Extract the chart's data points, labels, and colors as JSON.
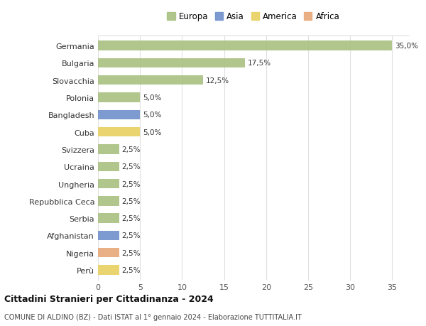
{
  "countries": [
    "Germania",
    "Bulgaria",
    "Slovacchia",
    "Polonia",
    "Bangladesh",
    "Cuba",
    "Svizzera",
    "Ucraina",
    "Ungheria",
    "Repubblica Ceca",
    "Serbia",
    "Afghanistan",
    "Nigeria",
    "Perù"
  ],
  "values": [
    35.0,
    17.5,
    12.5,
    5.0,
    5.0,
    5.0,
    2.5,
    2.5,
    2.5,
    2.5,
    2.5,
    2.5,
    2.5,
    2.5
  ],
  "labels": [
    "35,0%",
    "17,5%",
    "12,5%",
    "5,0%",
    "5,0%",
    "5,0%",
    "2,5%",
    "2,5%",
    "2,5%",
    "2,5%",
    "2,5%",
    "2,5%",
    "2,5%",
    "2,5%"
  ],
  "continents": [
    "Europa",
    "Europa",
    "Europa",
    "Europa",
    "Asia",
    "America",
    "Europa",
    "Europa",
    "Europa",
    "Europa",
    "Europa",
    "Asia",
    "Africa",
    "America"
  ],
  "colors": {
    "Europa": "#a8c080",
    "Asia": "#7090cc",
    "America": "#e8d060",
    "Africa": "#e8a878"
  },
  "xlim": [
    0,
    37
  ],
  "background_color": "#ffffff",
  "grid_color": "#e0e0e0",
  "title": "Cittadini Stranieri per Cittadinanza - 2024",
  "subtitle": "COMUNE DI ALDINO (BZ) - Dati ISTAT al 1° gennaio 2024 - Elaborazione TUTTITALIA.IT",
  "legend_order": [
    "Europa",
    "Asia",
    "America",
    "Africa"
  ]
}
